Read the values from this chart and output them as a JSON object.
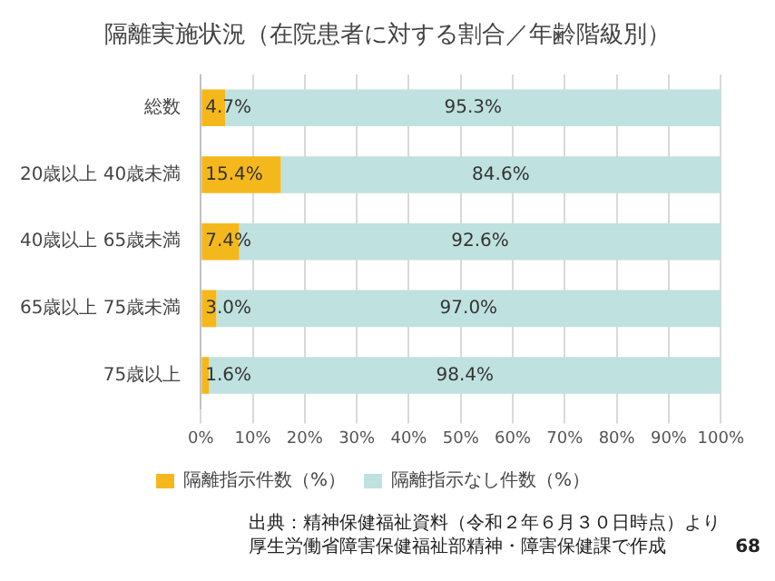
{
  "chart_data": {
    "type": "bar",
    "orientation": "horizontal",
    "stacked": true,
    "title": "隔離実施状況（在院患者に対する割合／年齢階級別）",
    "categories": [
      "総数",
      "20歳以上 40歳未満",
      "40歳以上 65歳未満",
      "65歳以上 75歳未満",
      "75歳以上"
    ],
    "series": [
      {
        "name": "隔離指示件数（%）",
        "color": "#f5b81c",
        "values": [
          4.7,
          15.4,
          7.4,
          3.0,
          1.6
        ],
        "value_labels": [
          "4.7%",
          "15.4%",
          "7.4%",
          "3.0%",
          "1.6%"
        ]
      },
      {
        "name": "隔離指示なし件数（%）",
        "color": "#bfe1df",
        "values": [
          95.3,
          84.6,
          92.6,
          97.0,
          98.4
        ],
        "value_labels": [
          "95.3%",
          "84.6%",
          "92.6%",
          "97.0%",
          "98.4%"
        ]
      }
    ],
    "xlim": [
      0,
      100
    ],
    "xticks": [
      {
        "value": 0,
        "label": "0%"
      },
      {
        "value": 10,
        "label": "10%"
      },
      {
        "value": 20,
        "label": "20%"
      },
      {
        "value": 30,
        "label": "30%"
      },
      {
        "value": 40,
        "label": "40%"
      },
      {
        "value": 50,
        "label": "50%"
      },
      {
        "value": 60,
        "label": "60%"
      },
      {
        "value": 70,
        "label": "70%"
      },
      {
        "value": 80,
        "label": "80%"
      },
      {
        "value": 90,
        "label": "90%"
      },
      {
        "value": 100,
        "label": "100%"
      }
    ],
    "grid": "x",
    "legend": "bottom",
    "annotations": [
      "出典：精神保健福祉資料（令和２年６月３０日時点）より",
      "厚生労働省障害保健福祉部精神・障害保健課で作成",
      "68"
    ]
  }
}
